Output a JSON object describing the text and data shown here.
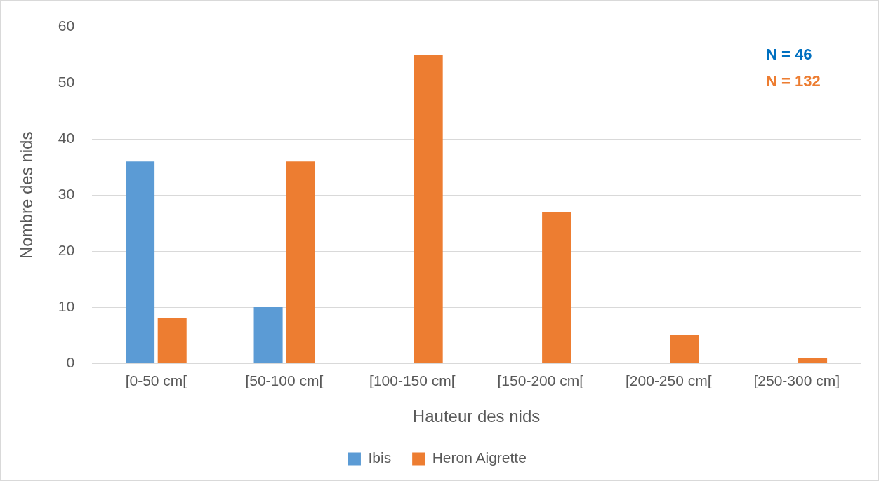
{
  "chart_data": {
    "type": "bar",
    "xlabel": "Hauteur des nids",
    "ylabel": "Nombre des nids",
    "categories": [
      "[0-50 cm[",
      "[50-100 cm[",
      "[100-150 cm[",
      "[150-200 cm[",
      "[200-250 cm[",
      "[250-300 cm]"
    ],
    "series": [
      {
        "name": "Ibis",
        "color": "#5b9bd5",
        "values": [
          36,
          10,
          0,
          0,
          0,
          0
        ]
      },
      {
        "name": "Heron Aigrette",
        "color": "#ed7d31",
        "values": [
          8,
          36,
          55,
          27,
          5,
          1
        ]
      }
    ],
    "ylim": [
      0,
      60
    ],
    "yticks": [
      0,
      10,
      20,
      30,
      40,
      50,
      60
    ],
    "grid": "y",
    "legend": "bottom",
    "annotations": [
      "N = 46",
      "N = 132"
    ]
  }
}
